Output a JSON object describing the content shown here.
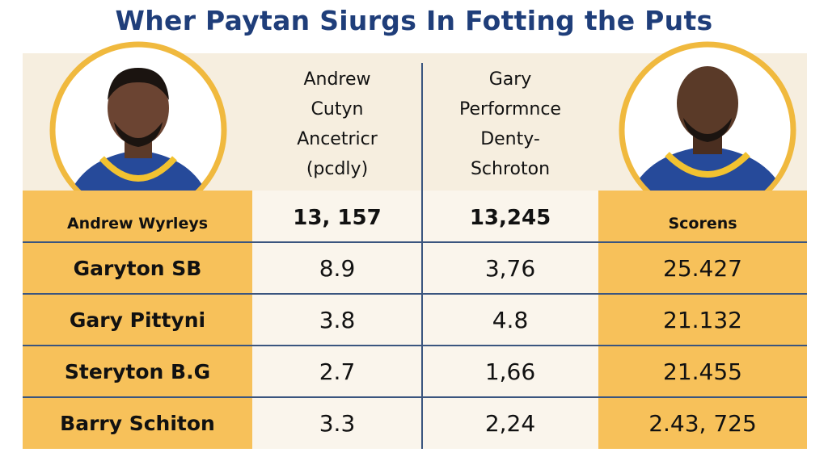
{
  "title": "Wher Paytan Siurgs In Fotting the Puts",
  "table": {
    "headers": [
      [
        "Andrew Wyrleys"
      ],
      [
        "Andrew",
        "Cutyn",
        "Ancetricr",
        "(pcdly)"
      ],
      [
        "Gary",
        "Performnce",
        "Denty-",
        "Schroton"
      ],
      [
        "Scorens"
      ]
    ],
    "totals": [
      "13, 157",
      "13,245"
    ],
    "rows": [
      [
        "Garyton SB",
        "8.9",
        "3,76",
        "25.427"
      ],
      [
        "Gary Pittyni",
        "3.8",
        "4.8",
        "21.132"
      ],
      [
        "Steryton B.G",
        "2.7",
        "1,66",
        "21.455"
      ],
      [
        "Barry Schiton",
        "3.3",
        "2,24",
        "2.43, 725"
      ]
    ]
  }
}
